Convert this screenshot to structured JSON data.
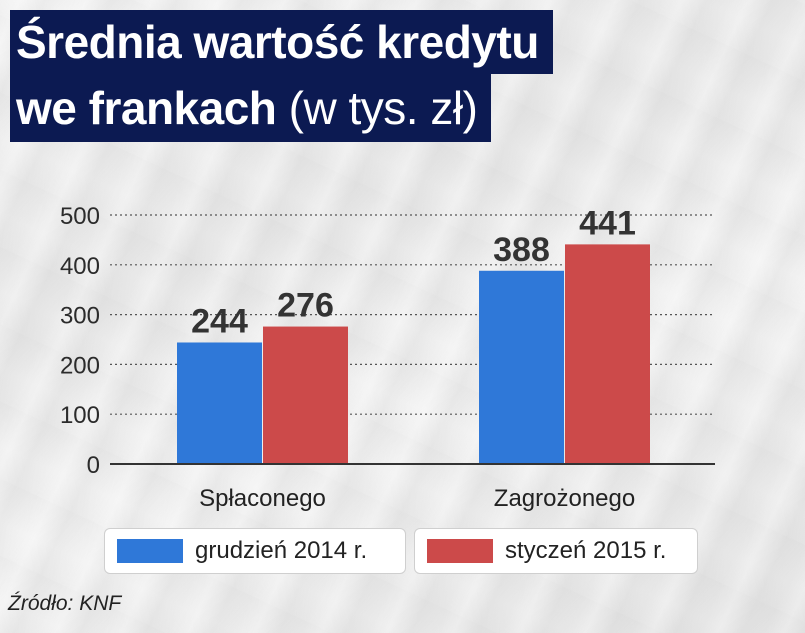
{
  "title": {
    "line1": "Średnia wartość kredytu",
    "line2_bold": "we frankach",
    "line2_light": " (w tys. zł)"
  },
  "chart_data": {
    "type": "bar",
    "categories": [
      "Spłaconego",
      "Zagrożonego"
    ],
    "series": [
      {
        "name": "grudzień 2014 r.",
        "color": "#2f78d8",
        "values": [
          244,
          388
        ]
      },
      {
        "name": "styczeń 2015 r.",
        "color": "#cc4a4a",
        "values": [
          276,
          441
        ]
      }
    ],
    "yticks": [
      "0",
      "100",
      "200",
      "300",
      "400",
      "500"
    ],
    "ylim": [
      0,
      500
    ],
    "xlabel": "",
    "ylabel": "",
    "grid": true,
    "legend_position": "bottom"
  },
  "source": "Źródło: KNF"
}
